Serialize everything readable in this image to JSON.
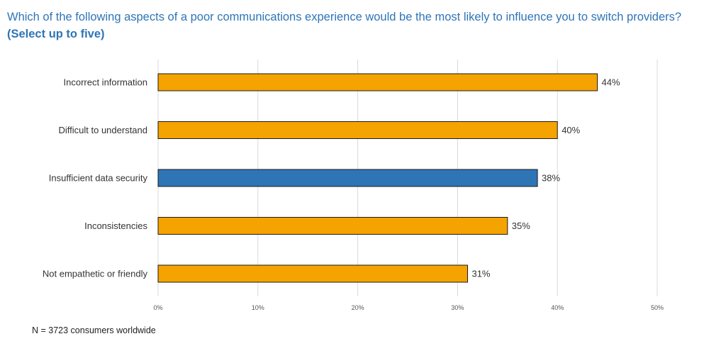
{
  "title": {
    "text": "Which of the following aspects of a poor communications experience would be the most likely to influence you to switch providers?",
    "emphasis": "(Select up to five)"
  },
  "footnote": "N = 3723 consumers worldwide",
  "colors": {
    "title": "#2e75b6",
    "bar_default": "#f5a300",
    "bar_highlight": "#2e75b6",
    "grid": "#d9d9d9"
  },
  "chart_data": {
    "type": "bar",
    "orientation": "horizontal",
    "categories": [
      "Incorrect information",
      "Difficult to understand",
      "Insufficient data security",
      "Inconsistencies",
      "Not empathetic or friendly"
    ],
    "values": [
      44,
      40,
      38,
      35,
      31
    ],
    "value_labels": [
      "44%",
      "40%",
      "38%",
      "35%",
      "31%"
    ],
    "highlight": [
      "Insufficient data security"
    ],
    "xlim": [
      0,
      50
    ],
    "x_ticks": [
      0,
      10,
      20,
      30,
      40,
      50
    ],
    "x_tick_labels": [
      "0%",
      "10%",
      "20%",
      "30%",
      "40%",
      "50%"
    ],
    "grid": true,
    "legend": false
  }
}
